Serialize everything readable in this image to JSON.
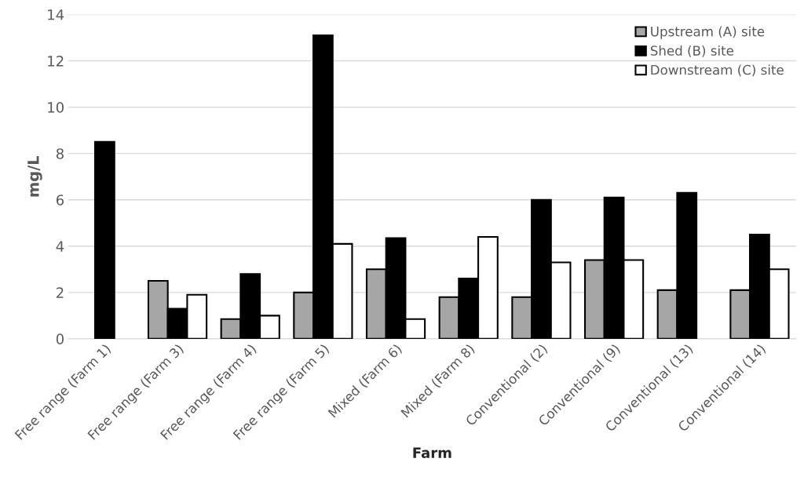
{
  "chart_data": {
    "type": "bar",
    "xlabel": "Farm",
    "ylabel": "mg/L",
    "categories": [
      "Free range (Farm 1)",
      "Free range (Farm 3)",
      "Free range (Farm 4)",
      "Free range (Farm 5)",
      "Mixed (Farm 6)",
      "Mixed (Farm 8)",
      "Conventional (2)",
      "Conventional (9)",
      "Conventional (13)",
      "Conventional (14)"
    ],
    "series": [
      {
        "name": "Upstream (A) site",
        "color": "#a6a6a6",
        "values": [
          null,
          2.5,
          0.85,
          2.0,
          3.0,
          1.8,
          1.8,
          3.4,
          2.1,
          2.1
        ]
      },
      {
        "name": "Shed (B) site",
        "color": "#000000",
        "values": [
          8.5,
          1.3,
          2.8,
          13.1,
          4.35,
          2.6,
          6.0,
          6.1,
          6.3,
          4.5
        ]
      },
      {
        "name": "Downstream (C) site",
        "color": "#ffffff",
        "values": [
          null,
          1.9,
          1.0,
          4.1,
          0.85,
          4.4,
          3.3,
          3.4,
          null,
          3.0
        ]
      }
    ],
    "ylim": [
      0,
      14
    ],
    "yticks": [
      0,
      2,
      4,
      6,
      8,
      10,
      12,
      14
    ],
    "grid": "y",
    "legend": "top right"
  }
}
